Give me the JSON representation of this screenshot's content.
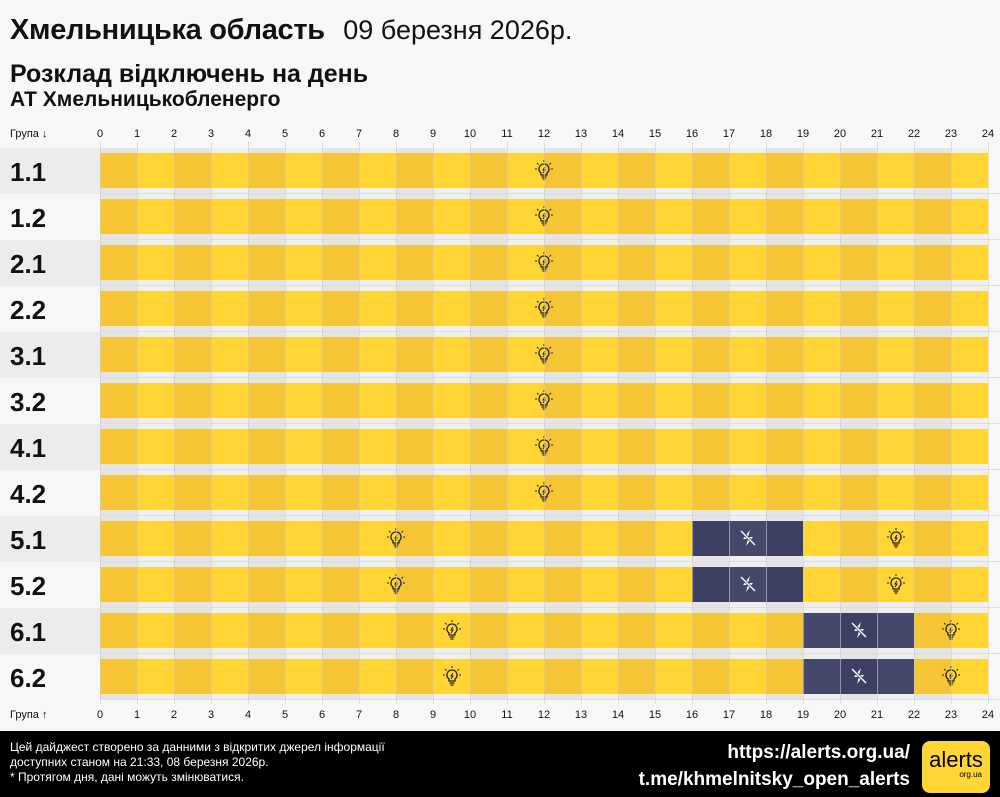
{
  "header": {
    "title": "Хмельницька область",
    "date": "09 березня 2026р.",
    "subtitle": "Розклад відключень на день",
    "company": "АТ Хмельницькобленерго"
  },
  "axis": {
    "top_label": "Група ↓",
    "bottom_label": "Група ↑",
    "hours": [
      "0",
      "1",
      "2",
      "3",
      "4",
      "5",
      "6",
      "7",
      "8",
      "9",
      "10",
      "11",
      "12",
      "13",
      "14",
      "15",
      "16",
      "17",
      "18",
      "19",
      "20",
      "21",
      "22",
      "23",
      "24"
    ]
  },
  "colors": {
    "power_on": "#ffd433",
    "power_on_alt": "#f5c535",
    "power_off": "#3d3f63",
    "power_off_alt": "#45476b"
  },
  "icons": {
    "power_on": "lightbulb-icon",
    "power_off": "no-power-bolt-icon"
  },
  "groups": [
    {
      "name": "1.1",
      "outages": []
    },
    {
      "name": "1.2",
      "outages": []
    },
    {
      "name": "2.1",
      "outages": []
    },
    {
      "name": "2.2",
      "outages": []
    },
    {
      "name": "3.1",
      "outages": []
    },
    {
      "name": "3.2",
      "outages": []
    },
    {
      "name": "4.1",
      "outages": []
    },
    {
      "name": "4.2",
      "outages": []
    },
    {
      "name": "5.1",
      "outages": [
        [
          16,
          19
        ]
      ]
    },
    {
      "name": "5.2",
      "outages": [
        [
          16,
          19
        ]
      ]
    },
    {
      "name": "6.1",
      "outages": [
        [
          19,
          22
        ]
      ]
    },
    {
      "name": "6.2",
      "outages": [
        [
          19,
          22
        ]
      ]
    }
  ],
  "footer": {
    "note1": "Цей дайджест створено за данними з відкритих джерел інформації",
    "note2": "доступних станом на 21:33, 08 березня 2026р.",
    "note3": "* Протягом дня, дані можуть змінюватися.",
    "link1": "https://alerts.org.ua/",
    "link2": "t.me/khmelnitsky_open_alerts",
    "logo_text": "alerts",
    "logo_sub": "org.ua"
  }
}
